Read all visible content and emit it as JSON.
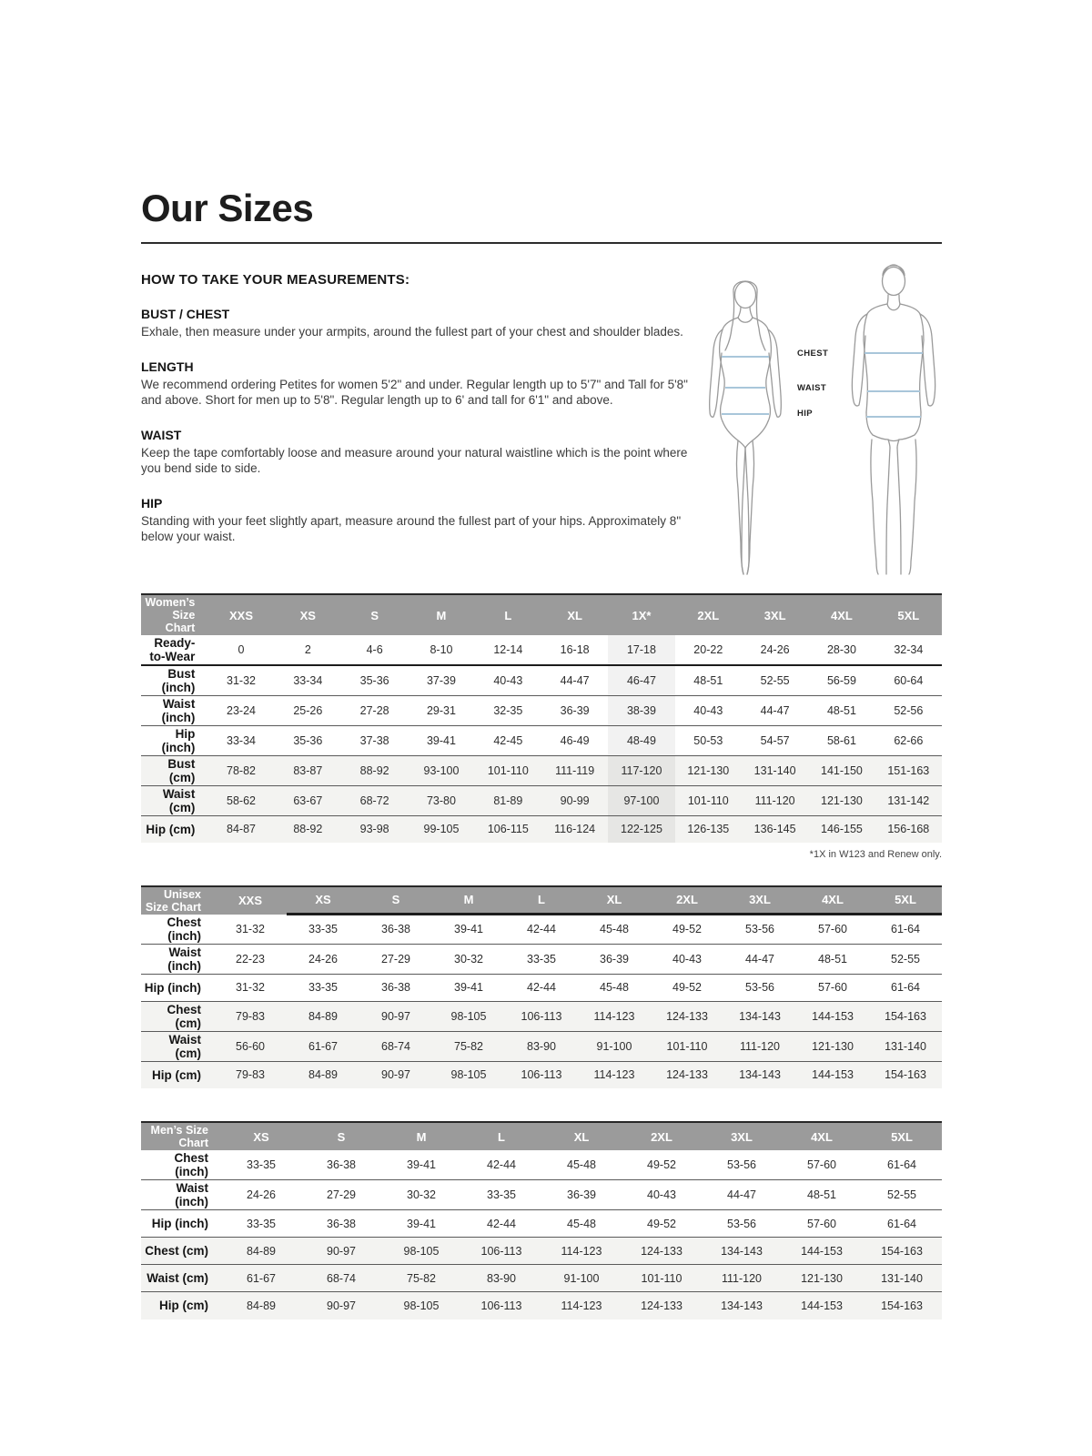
{
  "page": {
    "title": "Our Sizes",
    "measurements_heading": "HOW TO TAKE YOUR MEASUREMENTS:",
    "sections": [
      {
        "heading": "BUST / CHEST",
        "body": "Exhale, then measure under your armpits, around the fullest part of your chest and shoulder blades."
      },
      {
        "heading": "LENGTH",
        "body": "We recommend ordering Petites for women 5'2\" and under. Regular length up to 5'7\" and Tall for 5'8\" and above. Short for men up to 5'8\". Regular length up to 6' and tall for 6'1\" and above."
      },
      {
        "heading": "WAIST",
        "body": "Keep the tape comfortably loose and measure around your natural waistline which is the point where you bend side to side."
      },
      {
        "heading": "HIP",
        "body": "Standing with your feet slightly apart, measure around the fullest part of your hips. Approximately 8\" below your waist."
      }
    ],
    "figure_labels": [
      "CHEST",
      "WAIST",
      "HIP"
    ]
  },
  "colors": {
    "table_header_bg": "#9b9b9b",
    "shaded_row_bg": "#f3f3f1",
    "figure_line": "#9a9a9a",
    "measure_line": "#a9c6da"
  },
  "tables": {
    "womens": {
      "title": "Women’s Size Chart",
      "columns": [
        "XXS",
        "XS",
        "S",
        "M",
        "L",
        "XL",
        "1X*",
        "2XL",
        "3XL",
        "4XL",
        "5XL"
      ],
      "highlight_column": "1X*",
      "rows": [
        {
          "label": "Ready-to-Wear",
          "shaded": false,
          "values": [
            "0",
            "2",
            "4-6",
            "8-10",
            "12-14",
            "16-18",
            "17-18",
            "20-22",
            "24-26",
            "28-30",
            "32-34"
          ]
        },
        {
          "label": "Bust (inch)",
          "shaded": false,
          "values": [
            "31-32",
            "33-34",
            "35-36",
            "37-39",
            "40-43",
            "44-47",
            "46-47",
            "48-51",
            "52-55",
            "56-59",
            "60-64"
          ]
        },
        {
          "label": "Waist (inch)",
          "shaded": false,
          "values": [
            "23-24",
            "25-26",
            "27-28",
            "29-31",
            "32-35",
            "36-39",
            "38-39",
            "40-43",
            "44-47",
            "48-51",
            "52-56"
          ]
        },
        {
          "label": "Hip (inch)",
          "shaded": false,
          "values": [
            "33-34",
            "35-36",
            "37-38",
            "39-41",
            "42-45",
            "46-49",
            "48-49",
            "50-53",
            "54-57",
            "58-61",
            "62-66"
          ]
        },
        {
          "label": "Bust (cm)",
          "shaded": true,
          "values": [
            "78-82",
            "83-87",
            "88-92",
            "93-100",
            "101-110",
            "111-119",
            "117-120",
            "121-130",
            "131-140",
            "141-150",
            "151-163"
          ]
        },
        {
          "label": "Waist (cm)",
          "shaded": true,
          "values": [
            "58-62",
            "63-67",
            "68-72",
            "73-80",
            "81-89",
            "90-99",
            "97-100",
            "101-110",
            "111-120",
            "121-130",
            "131-142"
          ]
        },
        {
          "label": "Hip (cm)",
          "shaded": true,
          "values": [
            "84-87",
            "88-92",
            "93-98",
            "99-105",
            "106-115",
            "116-124",
            "122-125",
            "126-135",
            "136-145",
            "146-155",
            "156-168"
          ]
        }
      ],
      "footnote": "*1X in W123 and Renew only."
    },
    "unisex": {
      "title": "Unisex Size Chart",
      "columns": [
        "XXS",
        "XS",
        "S",
        "M",
        "L",
        "XL",
        "2XL",
        "3XL",
        "4XL",
        "5XL"
      ],
      "highlight_column": "",
      "rows": [
        {
          "label": "Chest (inch)",
          "shaded": false,
          "values": [
            "31-32",
            "33-35",
            "36-38",
            "39-41",
            "42-44",
            "45-48",
            "49-52",
            "53-56",
            "57-60",
            "61-64"
          ]
        },
        {
          "label": "Waist (inch)",
          "shaded": false,
          "values": [
            "22-23",
            "24-26",
            "27-29",
            "30-32",
            "33-35",
            "36-39",
            "40-43",
            "44-47",
            "48-51",
            "52-55"
          ]
        },
        {
          "label": "Hip (inch)",
          "shaded": false,
          "values": [
            "31-32",
            "33-35",
            "36-38",
            "39-41",
            "42-44",
            "45-48",
            "49-52",
            "53-56",
            "57-60",
            "61-64"
          ]
        },
        {
          "label": "Chest (cm)",
          "shaded": true,
          "values": [
            "79-83",
            "84-89",
            "90-97",
            "98-105",
            "106-113",
            "114-123",
            "124-133",
            "134-143",
            "144-153",
            "154-163"
          ]
        },
        {
          "label": "Waist (cm)",
          "shaded": true,
          "values": [
            "56-60",
            "61-67",
            "68-74",
            "75-82",
            "83-90",
            "91-100",
            "101-110",
            "111-120",
            "121-130",
            "131-140"
          ]
        },
        {
          "label": "Hip (cm)",
          "shaded": true,
          "values": [
            "79-83",
            "84-89",
            "90-97",
            "98-105",
            "106-113",
            "114-123",
            "124-133",
            "134-143",
            "144-153",
            "154-163"
          ]
        }
      ],
      "footnote": ""
    },
    "mens": {
      "title": "Men’s Size Chart",
      "columns": [
        "XS",
        "S",
        "M",
        "L",
        "XL",
        "2XL",
        "3XL",
        "4XL",
        "5XL"
      ],
      "highlight_column": "",
      "rows": [
        {
          "label": "Chest (inch)",
          "shaded": false,
          "values": [
            "33-35",
            "36-38",
            "39-41",
            "42-44",
            "45-48",
            "49-52",
            "53-56",
            "57-60",
            "61-64"
          ]
        },
        {
          "label": "Waist (inch)",
          "shaded": false,
          "values": [
            "24-26",
            "27-29",
            "30-32",
            "33-35",
            "36-39",
            "40-43",
            "44-47",
            "48-51",
            "52-55"
          ]
        },
        {
          "label": "Hip (inch)",
          "shaded": false,
          "values": [
            "33-35",
            "36-38",
            "39-41",
            "42-44",
            "45-48",
            "49-52",
            "53-56",
            "57-60",
            "61-64"
          ]
        },
        {
          "label": "Chest (cm)",
          "shaded": true,
          "values": [
            "84-89",
            "90-97",
            "98-105",
            "106-113",
            "114-123",
            "124-133",
            "134-143",
            "144-153",
            "154-163"
          ]
        },
        {
          "label": "Waist (cm)",
          "shaded": true,
          "values": [
            "61-67",
            "68-74",
            "75-82",
            "83-90",
            "91-100",
            "101-110",
            "111-120",
            "121-130",
            "131-140"
          ]
        },
        {
          "label": "Hip (cm)",
          "shaded": true,
          "values": [
            "84-89",
            "90-97",
            "98-105",
            "106-113",
            "114-123",
            "124-133",
            "134-143",
            "144-153",
            "154-163"
          ]
        }
      ],
      "footnote": ""
    }
  }
}
